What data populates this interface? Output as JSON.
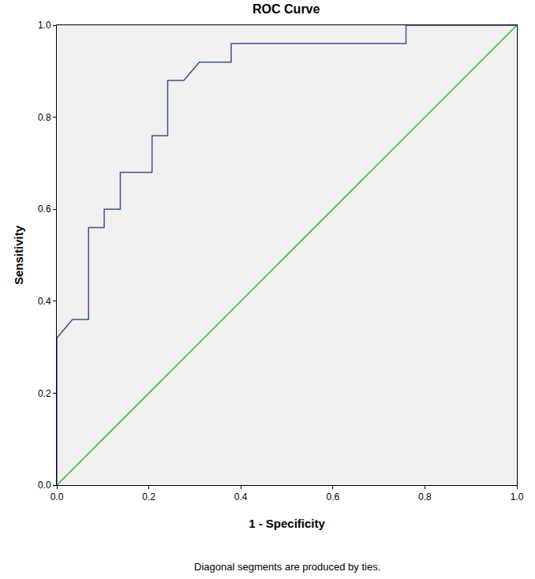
{
  "chart_data": {
    "type": "line",
    "title": "ROC Curve",
    "x_label": "1 - Specificity",
    "y_label": "Sensitivity",
    "annotations": [
      "Diagonal segments are produced by ties."
    ],
    "series": [
      {
        "x": [
          0,
          0,
          0.034,
          0.069,
          0.069,
          0.103,
          0.103,
          0.138,
          0.138,
          0.207,
          0.207,
          0.241,
          0.241,
          0.276,
          0.31,
          0.379,
          0.379,
          0.759,
          0.759,
          1.0
        ],
        "values": [
          0,
          0.32,
          0.36,
          0.36,
          0.56,
          0.56,
          0.6,
          0.6,
          0.68,
          0.68,
          0.76,
          0.76,
          0.88,
          0.88,
          0.92,
          0.92,
          0.96,
          0.96,
          1.0,
          1.0
        ],
        "color": "#3f4f94",
        "line_style": "solid"
      },
      {
        "x": [
          0,
          1.0
        ],
        "values": [
          0,
          1.0
        ],
        "color": "#2fb82f",
        "line_style": "solid"
      }
    ],
    "xlim": [
      0,
      1.0
    ],
    "ylim": [
      0,
      1.0
    ],
    "xticks": [
      {
        "value": 0,
        "label": "0.0"
      },
      0.2,
      0.4,
      0.6,
      0.8,
      {
        "value": 1.0,
        "label": "1.0"
      }
    ],
    "yticks": [
      {
        "value": 0,
        "label": "0.0"
      },
      0.2,
      0.4,
      0.6,
      0.8,
      {
        "value": 1.0,
        "label": "1.0"
      }
    ],
    "grid": false
  }
}
